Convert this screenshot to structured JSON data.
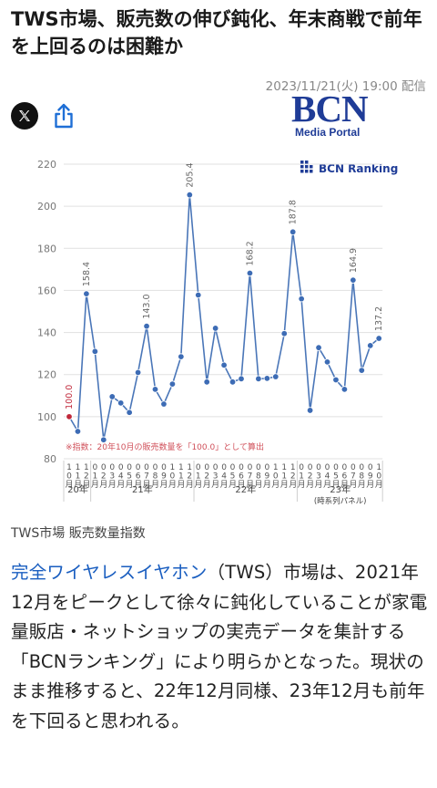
{
  "article": {
    "headline": "TWS市場、販売数の伸び鈍化、年末商戦で前年を上回るのは困難か",
    "dateline": "2023/11/21(火) 19:00 配信",
    "logo_main": "BCN",
    "logo_sub": "Media Portal",
    "caption": "TWS市場 販売数量指数",
    "body_link": "完全ワイヤレスイヤホン",
    "body_rest": "（TWS）市場は、2021年12月をピークとして徐々に鈍化していることが家電量販店・ネットショップの実売データを集計する「BCNランキング」により明らかとなった。現状のまま推移すると、22年12月同様、23年12月も前年を下回ると思われる。"
  },
  "share": {
    "x_icon": "x-logo-icon",
    "share_icon": "share-icon"
  },
  "chart_data": {
    "type": "line",
    "brand": "BCN Ranking",
    "note": "※指数：20年10月の販売数量を「100.0」として算出",
    "x": [
      "20-10",
      "20-11",
      "20-12",
      "21-01",
      "21-02",
      "21-03",
      "21-04",
      "21-05",
      "21-06",
      "21-07",
      "21-08",
      "21-09",
      "21-10",
      "21-11",
      "21-12",
      "22-01",
      "22-02",
      "22-03",
      "22-04",
      "22-05",
      "22-06",
      "22-07",
      "22-08",
      "22-09",
      "22-10",
      "22-11",
      "22-12",
      "23-01",
      "23-02",
      "23-03",
      "23-04",
      "23-05",
      "23-06",
      "23-07",
      "23-08",
      "23-09",
      "23-10"
    ],
    "tick_labels": [
      "10月",
      "11月",
      "12月",
      "01月",
      "02月",
      "03月",
      "04月",
      "05月",
      "06月",
      "07月",
      "08月",
      "09月",
      "10月",
      "11月",
      "12月",
      "01月",
      "02月",
      "03月",
      "04月",
      "05月",
      "06月",
      "07月",
      "08月",
      "09月",
      "10月",
      "11月",
      "12月",
      "01月",
      "02月",
      "03月",
      "04月",
      "05月",
      "06月",
      "07月",
      "08月",
      "09月",
      "10月"
    ],
    "years": [
      {
        "label": "20年",
        "start": 0,
        "end": 2
      },
      {
        "label": "21年",
        "start": 3,
        "end": 14
      },
      {
        "label": "22年",
        "start": 15,
        "end": 26
      },
      {
        "label": "23年",
        "start": 27,
        "end": 36
      }
    ],
    "year_note": "(時系列パネル)",
    "values": [
      100.0,
      93.0,
      158.4,
      131.0,
      89.0,
      109.5,
      106.5,
      102.0,
      121.0,
      143.0,
      113.0,
      106.0,
      115.5,
      128.5,
      205.4,
      157.8,
      116.5,
      142.0,
      124.5,
      116.5,
      118.0,
      168.2,
      118.0,
      118.2,
      119.0,
      139.5,
      187.8,
      156.0,
      103.0,
      132.8,
      126.0,
      117.5,
      113.0,
      164.9,
      122.0,
      133.8,
      137.2
    ],
    "labels": [
      {
        "index": 0,
        "text": "100.0",
        "highlight": true
      },
      {
        "index": 2,
        "text": "158.4"
      },
      {
        "index": 9,
        "text": "143.0"
      },
      {
        "index": 14,
        "text": "205.4"
      },
      {
        "index": 21,
        "text": "168.2"
      },
      {
        "index": 26,
        "text": "187.8"
      },
      {
        "index": 33,
        "text": "164.9"
      },
      {
        "index": 36,
        "text": "137.2"
      }
    ],
    "yticks": [
      80,
      100,
      120,
      140,
      160,
      180,
      200,
      220
    ],
    "ylim": [
      80,
      220
    ],
    "grid": true,
    "colors": {
      "line": "#4a76b8",
      "marker": "#3d6cb5",
      "highlight": "#c0283a",
      "grid": "#e1e1e1",
      "note": "#d0505a",
      "brand": "#1f3c97"
    }
  }
}
